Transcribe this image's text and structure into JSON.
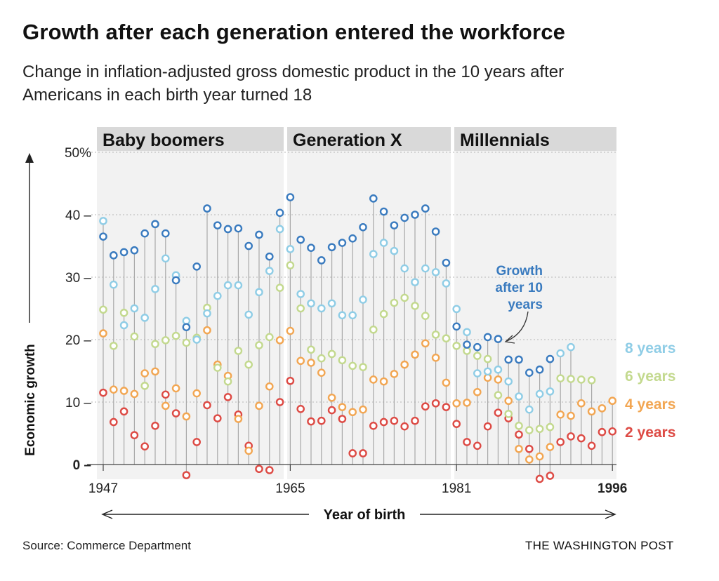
{
  "title": "Growth after each generation entered the workforce",
  "subtitle": "Change in inflation-adjusted gross domestic product in the 10 years after Americans in each birth year turned 18",
  "source": "Source: Commerce Department",
  "credit": "THE WASHINGTON POST",
  "chart_data": {
    "type": "scatter",
    "xlabel": "Year of birth",
    "ylabel": "Economic growth",
    "xlim": [
      1947,
      1996
    ],
    "ylim": [
      0,
      50
    ],
    "x_tick_labels": [
      "1947",
      "1965",
      "1981",
      "1996"
    ],
    "y_tick_labels": [
      "50%",
      "40",
      "30",
      "20",
      "10",
      "0"
    ],
    "generations": [
      {
        "name": "Baby boomers",
        "start": 1946,
        "end": 1964
      },
      {
        "name": "Generation X",
        "start": 1965,
        "end": 1980
      },
      {
        "name": "Millennials",
        "start": 1981,
        "end": 1996
      }
    ],
    "annotation": {
      "text": [
        "Growth",
        "after 10",
        "years"
      ],
      "points_to": 1985
    },
    "x": [
      1947,
      1948,
      1949,
      1950,
      1951,
      1952,
      1953,
      1954,
      1955,
      1956,
      1957,
      1958,
      1959,
      1960,
      1961,
      1962,
      1963,
      1964,
      1965,
      1966,
      1967,
      1968,
      1969,
      1970,
      1971,
      1972,
      1973,
      1974,
      1975,
      1976,
      1977,
      1978,
      1979,
      1980,
      1981,
      1982,
      1983,
      1984,
      1985,
      1986,
      1987,
      1988,
      1989,
      1990,
      1991,
      1992,
      1993,
      1994,
      1995,
      1996
    ],
    "series": [
      {
        "name": "Growth after 10 years",
        "color": "#3a7bbf",
        "values": [
          36.5,
          33.5,
          34.0,
          34.3,
          37.0,
          38.5,
          37.0,
          29.5,
          22.0,
          31.7,
          41.0,
          38.3,
          37.7,
          37.8,
          35.0,
          36.8,
          33.3,
          40.3,
          42.8,
          36.0,
          34.7,
          32.7,
          34.8,
          35.5,
          36.2,
          38.0,
          42.6,
          40.5,
          38.3,
          39.5,
          40.0,
          41.0,
          37.3,
          32.3,
          22.1,
          19.2,
          18.8,
          20.4,
          20.1,
          16.8,
          16.8,
          14.7,
          15.2,
          16.9,
          null,
          null,
          null,
          null,
          null,
          null
        ]
      },
      {
        "name": "8 years",
        "color": "#8fcde6",
        "values": [
          39.0,
          28.8,
          22.3,
          25.0,
          23.5,
          28.1,
          33.0,
          30.3,
          23.0,
          20.0,
          24.2,
          27.0,
          28.7,
          28.7,
          24.0,
          27.6,
          31.0,
          37.7,
          34.5,
          27.3,
          25.8,
          25.0,
          25.8,
          23.9,
          23.9,
          26.4,
          33.7,
          35.5,
          34.2,
          31.4,
          29.2,
          31.4,
          30.8,
          29.0,
          24.9,
          21.2,
          14.6,
          14.9,
          15.2,
          13.3,
          10.9,
          8.8,
          11.3,
          11.7,
          17.8,
          18.8,
          null,
          null,
          null,
          null
        ]
      },
      {
        "name": "6 years",
        "color": "#c3d98e",
        "values": [
          24.8,
          19.0,
          24.3,
          20.5,
          12.6,
          19.3,
          19.9,
          20.6,
          19.5,
          20.3,
          25.1,
          15.5,
          13.3,
          18.2,
          16.0,
          19.1,
          20.4,
          28.3,
          31.9,
          25.0,
          18.4,
          17.0,
          17.7,
          16.7,
          15.8,
          15.6,
          21.6,
          24.1,
          25.9,
          26.7,
          25.4,
          23.8,
          20.8,
          20.2,
          19.0,
          18.2,
          17.4,
          16.9,
          11.1,
          8.1,
          6.2,
          5.5,
          5.7,
          6.0,
          13.8,
          13.7,
          13.6,
          13.5,
          null,
          null
        ]
      },
      {
        "name": "4 years",
        "color": "#f2a652",
        "values": [
          21.0,
          12.0,
          11.8,
          11.3,
          14.6,
          14.9,
          9.4,
          12.2,
          7.7,
          11.4,
          21.5,
          16.0,
          14.2,
          7.3,
          2.2,
          9.4,
          12.5,
          19.9,
          21.4,
          16.6,
          16.3,
          14.7,
          10.7,
          9.2,
          8.4,
          8.8,
          13.6,
          13.3,
          14.5,
          16.0,
          17.6,
          19.4,
          17.1,
          13.1,
          9.8,
          9.9,
          11.6,
          13.9,
          13.6,
          10.2,
          2.5,
          0.8,
          1.3,
          2.8,
          8.0,
          7.8,
          9.8,
          8.5,
          9.0,
          10.2
        ]
      },
      {
        "name": "2 years",
        "color": "#dd4a44",
        "values": [
          11.5,
          6.8,
          8.5,
          4.7,
          2.9,
          6.2,
          11.2,
          8.2,
          -1.7,
          3.6,
          9.5,
          7.4,
          10.8,
          8.0,
          3.0,
          -0.7,
          -0.9,
          10.0,
          13.4,
          8.9,
          6.9,
          7.0,
          8.7,
          7.3,
          1.8,
          1.8,
          6.2,
          6.8,
          7.0,
          6.1,
          7.0,
          9.3,
          9.8,
          9.2,
          6.5,
          3.6,
          3.0,
          6.1,
          8.3,
          7.4,
          4.8,
          2.5,
          -2.3,
          -1.8,
          3.6,
          4.5,
          4.2,
          3.0,
          5.2,
          5.3
        ]
      }
    ]
  }
}
